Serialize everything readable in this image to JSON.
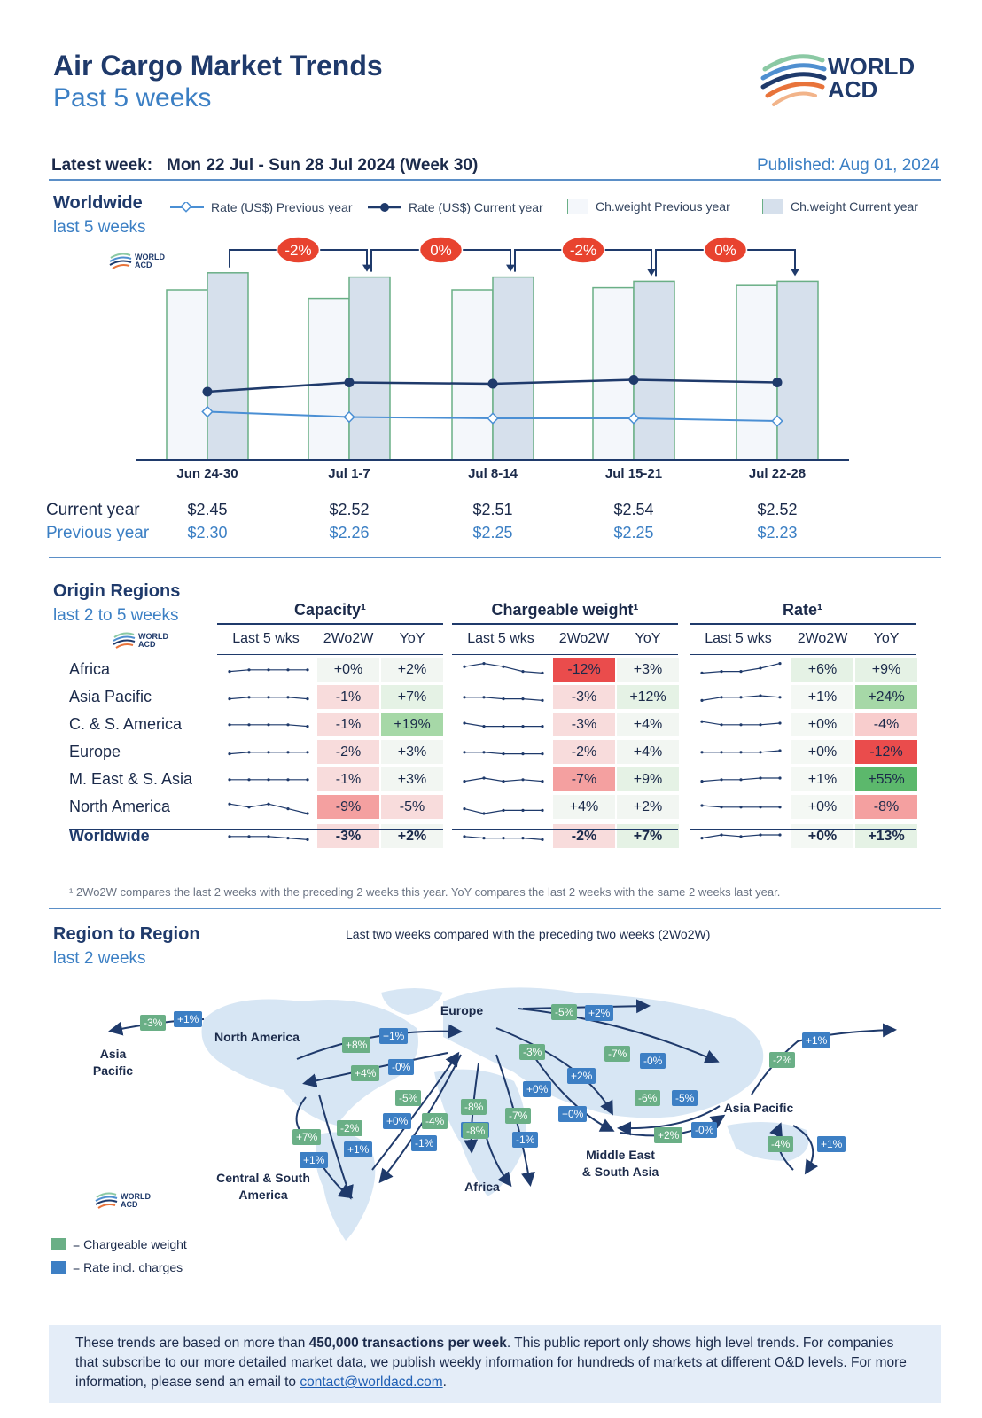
{
  "header": {
    "title": "Air Cargo Market Trends",
    "subtitle": "Past 5 weeks",
    "latest_label": "Latest week:",
    "latest_value": "Mon 22 Jul - Sun 28 Jul 2024 (Week 30)",
    "published": "Published: Aug 01, 2024",
    "logo_line1": "WORLD",
    "logo_line2": "ACD"
  },
  "worldwide": {
    "title": "Worldwide",
    "subtitle": "last 5 weeks",
    "legend": {
      "rate_prev": "Rate (US$) Previous year",
      "rate_cur": "Rate (US$) Current year",
      "cw_prev": "Ch.weight Previous year",
      "cw_cur": "Ch.weight Current year"
    },
    "row_labels": {
      "current": "Current year",
      "previous": "Previous year"
    },
    "changes": [
      "-2%",
      "0%",
      "-2%",
      "0%"
    ]
  },
  "chart_data": {
    "type": "bar",
    "categories": [
      "Jun 24-30",
      "Jul 1-7",
      "Jul 8-14",
      "Jul 15-21",
      "Jul 22-28"
    ],
    "series": [
      {
        "name": "Ch.weight Previous year",
        "values": [
          80,
          76,
          80,
          81,
          82
        ]
      },
      {
        "name": "Ch.weight Current year",
        "values": [
          88,
          86,
          86,
          84,
          84
        ]
      },
      {
        "name": "Rate (US$) Previous year",
        "values": [
          2.3,
          2.26,
          2.25,
          2.25,
          2.23
        ],
        "display": [
          "$2.30",
          "$2.26",
          "$2.25",
          "$2.25",
          "$2.23"
        ]
      },
      {
        "name": "Rate (US$) Current year",
        "values": [
          2.45,
          2.52,
          2.51,
          2.54,
          2.52
        ],
        "display": [
          "$2.45",
          "$2.52",
          "$2.51",
          "$2.54",
          "$2.52"
        ]
      }
    ],
    "colors": {
      "bar_prev_fill": "#f4f7fb",
      "bar_cur_fill": "#d6e0ec",
      "bar_edge": "#6aaf86",
      "line_prev": "#4a8fd4",
      "line_cur": "#1f3a6b",
      "change_badge": "#e8432f"
    }
  },
  "origin": {
    "title": "Origin Regions",
    "subtitle": "last 2 to 5 weeks",
    "groups": [
      "Capacity¹",
      "Chargeable weight¹",
      "Rate¹"
    ],
    "subheads": [
      "Last 5 wks",
      "2Wo2W",
      "YoY"
    ],
    "regions": [
      "Africa",
      "Asia Pacific",
      "C. & S. America",
      "Europe",
      "M. East & S. Asia",
      "North America",
      "Worldwide"
    ],
    "capacity": [
      [
        "+0%",
        "+2%"
      ],
      [
        "-1%",
        "+7%"
      ],
      [
        "-1%",
        "+19%"
      ],
      [
        "-2%",
        "+3%"
      ],
      [
        "-1%",
        "+3%"
      ],
      [
        "-9%",
        "-5%"
      ],
      [
        "-3%",
        "+2%"
      ]
    ],
    "cweight": [
      [
        "-12%",
        "+3%"
      ],
      [
        "-3%",
        "+12%"
      ],
      [
        "-3%",
        "+4%"
      ],
      [
        "-2%",
        "+4%"
      ],
      [
        "-7%",
        "+9%"
      ],
      [
        "+4%",
        "+2%"
      ],
      [
        "-2%",
        "+7%"
      ]
    ],
    "rate": [
      [
        "+6%",
        "+9%"
      ],
      [
        "+1%",
        "+24%"
      ],
      [
        "+0%",
        "-4%"
      ],
      [
        "+0%",
        "-12%"
      ],
      [
        "+1%",
        "+55%"
      ],
      [
        "+0%",
        "-8%"
      ],
      [
        "+0%",
        "+13%"
      ]
    ],
    "spark_capacity": [
      [
        3,
        4,
        4,
        4,
        4
      ],
      [
        3,
        4,
        4,
        4,
        3
      ],
      [
        4,
        4,
        4,
        4,
        3
      ],
      [
        3,
        4,
        4,
        4,
        4
      ],
      [
        4,
        4,
        4,
        4,
        4
      ],
      [
        6,
        4,
        6,
        3,
        0
      ],
      [
        4,
        4,
        4,
        3,
        2
      ]
    ],
    "spark_cweight": [
      [
        6,
        8,
        6,
        3,
        2
      ],
      [
        4,
        4,
        3,
        3,
        2
      ],
      [
        5,
        3,
        3,
        3,
        3
      ],
      [
        4,
        4,
        3,
        3,
        3
      ],
      [
        3,
        5,
        3,
        4,
        3
      ],
      [
        3,
        0,
        2,
        2,
        2
      ],
      [
        4,
        3,
        3,
        3,
        2
      ]
    ],
    "spark_rate": [
      [
        2,
        3,
        3,
        5,
        8
      ],
      [
        2,
        4,
        4,
        5,
        4
      ],
      [
        6,
        4,
        4,
        4,
        5
      ],
      [
        4,
        4,
        4,
        4,
        5
      ],
      [
        3,
        4,
        4,
        5,
        5
      ],
      [
        5,
        4,
        4,
        4,
        4
      ],
      [
        3,
        5,
        4,
        5,
        5
      ]
    ],
    "note": "¹ 2Wo2W compares the last 2 weeks with the preceding 2 weeks this year. YoY compares the last 2 weeks with the same 2 weeks last year."
  },
  "r2r": {
    "title": "Region to Region",
    "subtitle": "last 2 weeks",
    "caption": "Last two weeks compared with the preceding two weeks (2Wo2W)",
    "labels": {
      "asia_pacific_w": "Asia\nPacific",
      "north_america_w": "North America",
      "europe": "Europe",
      "north_america_e": "North\nAmerica",
      "asia_pacific_e": "Asia Pacific",
      "csa": "Central & South\nAmerica",
      "africa": "Africa",
      "mesa": "Middle East\n& South Asia"
    },
    "badges": [
      {
        "t": "-3%",
        "c": "g"
      },
      {
        "t": "+1%",
        "c": "b"
      },
      {
        "t": "+8%",
        "c": "g"
      },
      {
        "t": "+1%",
        "c": "b"
      },
      {
        "t": "+4%",
        "c": "g"
      },
      {
        "t": "-0%",
        "c": "b"
      },
      {
        "t": "-5%",
        "c": "g"
      },
      {
        "t": "+2%",
        "c": "b"
      },
      {
        "t": "-3%",
        "c": "g"
      },
      {
        "t": "+2%",
        "c": "b"
      },
      {
        "t": "-7%",
        "c": "g"
      },
      {
        "t": "-0%",
        "c": "b"
      },
      {
        "t": "-2%",
        "c": "g"
      },
      {
        "t": "+1%",
        "c": "b"
      },
      {
        "t": "-5%",
        "c": "g"
      },
      {
        "t": "+0%",
        "c": "b"
      },
      {
        "t": "-8%",
        "c": "g"
      },
      {
        "t": "+0%",
        "c": "b"
      },
      {
        "t": "-6%",
        "c": "g"
      },
      {
        "t": "-5%",
        "c": "b"
      },
      {
        "t": "+7%",
        "c": "g"
      },
      {
        "t": "+1%",
        "c": "b"
      },
      {
        "t": "-2%",
        "c": "g"
      },
      {
        "t": "+1%",
        "c": "b"
      },
      {
        "t": "+0%",
        "c": "b"
      },
      {
        "t": "-4%",
        "c": "g"
      },
      {
        "t": "-1%",
        "c": "b"
      },
      {
        "t": "-8%",
        "c": "g"
      },
      {
        "t": "+0%",
        "c": "b"
      },
      {
        "t": "-7%",
        "c": "g"
      },
      {
        "t": "-1%",
        "c": "b"
      },
      {
        "t": "+2%",
        "c": "g"
      },
      {
        "t": "-0%",
        "c": "b"
      },
      {
        "t": "-4%",
        "c": "g"
      },
      {
        "t": "+1%",
        "c": "b"
      }
    ],
    "legend_cw": "= Chargeable weight",
    "legend_rate": "= Rate incl. charges"
  },
  "footer": {
    "p1": "These trends are based on more than ",
    "bold": "450,000 transactions per week",
    "p2": ". This public report only shows high level trends. For companies that subscribe to our more detailed market data, we publish weekly information for hundreds of markets at different O&D levels. For more information, please send an email to ",
    "email": "contact@worldacd.com",
    "p3": "."
  }
}
